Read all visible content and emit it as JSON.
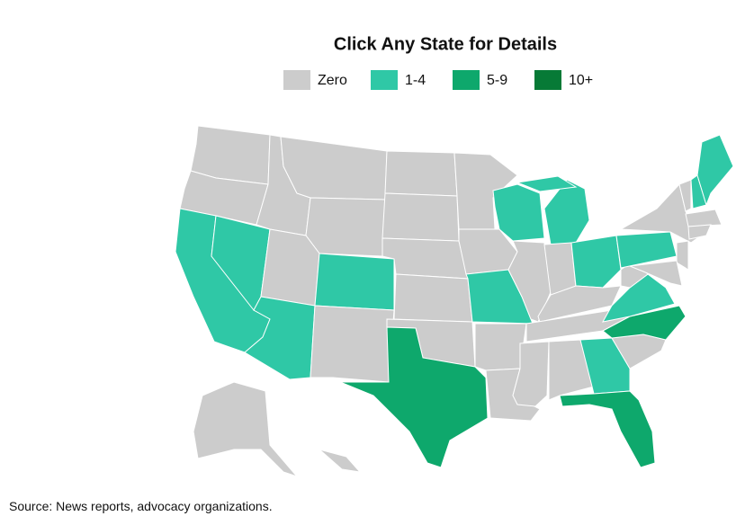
{
  "title": "Click Any State for Details",
  "legend": [
    {
      "label": "Zero",
      "color": "#cccccc"
    },
    {
      "label": "1-4",
      "color": "#2fc8a6"
    },
    {
      "label": "5-9",
      "color": "#0ea86c"
    },
    {
      "label": "10+",
      "color": "#077a36"
    }
  ],
  "source": "Source: News reports, advocacy organizations."
}
